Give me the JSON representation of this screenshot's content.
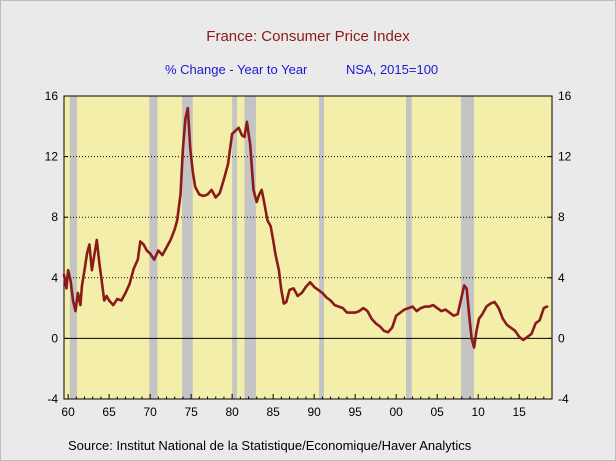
{
  "chart_data": {
    "type": "line",
    "title": "France: Consumer Price Index",
    "subtitle_left": "% Change - Year to Year",
    "subtitle_right": "NSA, 2015=100",
    "source": "Source:  Institut National de la Statistique/Economique/Haver Analytics",
    "xlim": [
      1959.5,
      2019
    ],
    "ylim": [
      -4,
      16
    ],
    "y_ticks": [
      -4,
      0,
      4,
      8,
      12,
      16
    ],
    "y_tick_labels_left": [
      "-4",
      "0",
      "4",
      "8",
      "12",
      "16"
    ],
    "y_tick_labels_right": [
      "-4",
      "0",
      "4",
      "8",
      "12",
      "16"
    ],
    "x_ticks": [
      1960,
      1965,
      1970,
      1975,
      1980,
      1985,
      1990,
      1995,
      2000,
      2005,
      2010,
      2015
    ],
    "x_tick_labels": [
      "60",
      "65",
      "70",
      "75",
      "80",
      "85",
      "90",
      "95",
      "00",
      "05",
      "10",
      "15"
    ],
    "grid": "dotted horizontal at 4, 8, 12; solid zero line",
    "plot_background": "#f3efaa",
    "recession_color": "#c4c4c4",
    "line_color": "#8b1a1a",
    "recessions": [
      [
        1960.2,
        1961.1
      ],
      [
        1969.9,
        1970.9
      ],
      [
        1973.9,
        1975.2
      ],
      [
        1980.0,
        1980.6
      ],
      [
        1981.5,
        1982.9
      ],
      [
        1990.6,
        1991.2
      ],
      [
        2001.2,
        2001.9
      ],
      [
        2007.9,
        2009.5
      ]
    ],
    "series": [
      {
        "x": [
          1959.5,
          1959.8,
          1960.0,
          1960.3,
          1960.6,
          1960.9,
          1961.2,
          1961.5,
          1961.7,
          1962.0,
          1962.3,
          1962.6,
          1962.9,
          1963.2,
          1963.5,
          1963.8,
          1964.1,
          1964.4,
          1964.7,
          1965.0,
          1965.5,
          1966.0,
          1966.5,
          1967.0,
          1967.5,
          1968.0,
          1968.5,
          1968.8,
          1969.2,
          1969.6,
          1970.0,
          1970.5,
          1971.0,
          1971.5,
          1972.0,
          1972.5,
          1973.0,
          1973.3,
          1973.7,
          1974.0,
          1974.3,
          1974.6,
          1974.9,
          1975.2,
          1975.5,
          1976.0,
          1976.5,
          1977.0,
          1977.5,
          1978.0,
          1978.5,
          1979.0,
          1979.5,
          1980.0,
          1980.4,
          1980.8,
          1981.2,
          1981.5,
          1981.8,
          1982.2,
          1982.6,
          1983.0,
          1983.3,
          1983.6,
          1983.9,
          1984.3,
          1984.7,
          1985.0,
          1985.3,
          1985.7,
          1986.0,
          1986.3,
          1986.6,
          1987.0,
          1987.5,
          1988.0,
          1988.5,
          1989.0,
          1989.5,
          1990.0,
          1990.5,
          1991.0,
          1991.5,
          1992.0,
          1992.5,
          1993.0,
          1993.5,
          1994.0,
          1994.5,
          1995.0,
          1995.5,
          1996.0,
          1996.5,
          1997.0,
          1997.5,
          1998.0,
          1998.5,
          1999.0,
          1999.5,
          2000.0,
          2000.5,
          2001.0,
          2001.5,
          2002.0,
          2002.5,
          2003.0,
          2003.5,
          2004.0,
          2004.5,
          2005.0,
          2005.5,
          2006.0,
          2006.5,
          2007.0,
          2007.5,
          2008.0,
          2008.3,
          2008.6,
          2008.9,
          2009.2,
          2009.5,
          2009.8,
          2010.1,
          2010.5,
          2011.0,
          2011.5,
          2012.0,
          2012.5,
          2013.0,
          2013.5,
          2014.0,
          2014.5,
          2015.0,
          2015.5,
          2016.0,
          2016.5,
          2017.0,
          2017.5,
          2018.0,
          2018.4
        ],
        "values": [
          4.2,
          3.3,
          4.5,
          3.8,
          2.5,
          1.8,
          3.0,
          2.2,
          3.5,
          4.5,
          5.6,
          6.2,
          4.5,
          5.5,
          6.5,
          5.0,
          3.8,
          2.5,
          2.8,
          2.5,
          2.2,
          2.6,
          2.5,
          3.0,
          3.6,
          4.6,
          5.2,
          6.4,
          6.2,
          5.8,
          5.6,
          5.2,
          5.8,
          5.5,
          6.0,
          6.5,
          7.2,
          7.8,
          9.5,
          12.5,
          14.5,
          15.2,
          12.5,
          11.0,
          10.0,
          9.5,
          9.4,
          9.5,
          9.8,
          9.3,
          9.6,
          10.5,
          11.5,
          13.5,
          13.7,
          13.9,
          13.4,
          13.3,
          14.3,
          12.8,
          9.8,
          9.0,
          9.5,
          9.8,
          9.0,
          7.8,
          7.4,
          6.5,
          5.5,
          4.5,
          3.2,
          2.3,
          2.4,
          3.2,
          3.3,
          2.8,
          3.0,
          3.4,
          3.7,
          3.4,
          3.2,
          3.0,
          2.7,
          2.5,
          2.2,
          2.1,
          2.0,
          1.7,
          1.7,
          1.7,
          1.8,
          2.0,
          1.8,
          1.3,
          1.0,
          0.8,
          0.5,
          0.4,
          0.7,
          1.5,
          1.7,
          1.9,
          2.0,
          2.1,
          1.8,
          2.0,
          2.1,
          2.1,
          2.2,
          2.0,
          1.8,
          1.9,
          1.7,
          1.5,
          1.6,
          2.8,
          3.5,
          3.3,
          1.5,
          0.0,
          -0.6,
          0.5,
          1.3,
          1.6,
          2.1,
          2.3,
          2.4,
          2.0,
          1.3,
          0.9,
          0.7,
          0.5,
          0.1,
          -0.1,
          0.1,
          0.3,
          1.0,
          1.2,
          2.0,
          2.1
        ]
      }
    ]
  }
}
